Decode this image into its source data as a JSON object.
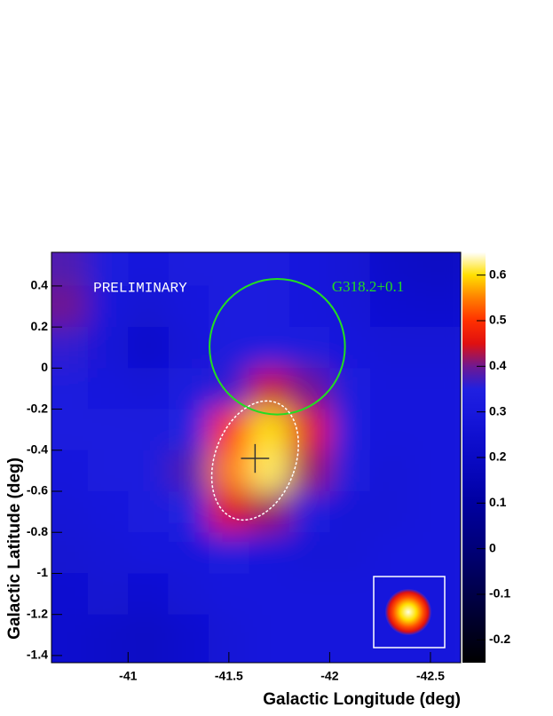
{
  "chart_data": {
    "type": "heatmap",
    "x_label": "Galactic Longitude (deg)",
    "y_label": "Galactic Latitude (deg)",
    "xlim": [
      -40.62,
      -42.65
    ],
    "ylim": [
      -1.435,
      0.564
    ],
    "xticks": [
      -41,
      -41.5,
      -42,
      -42.5
    ],
    "yticks": [
      0.4,
      0.2,
      0,
      -0.2,
      -0.4,
      -0.6,
      -0.8,
      -1,
      -1.2,
      -1.4
    ],
    "zlim": [
      -0.25,
      0.65
    ],
    "zticks": [
      -0.2,
      -0.1,
      0,
      0.1,
      0.2,
      0.3,
      0.4,
      0.5,
      0.6
    ],
    "colormap": [
      "#000000",
      "#000018",
      "#000030",
      "#000048",
      "#000060",
      "#000078",
      "#00008c",
      "#0000a0",
      "#0505b4",
      "#0a0ac4",
      "#1010d0",
      "#1818dc",
      "#2020e0",
      "#701890",
      "#e01010",
      "#ff3000",
      "#ff8000",
      "#ffe000",
      "#ffffff"
    ],
    "x": [
      -40.7,
      -40.9,
      -41.1,
      -41.3,
      -41.5,
      -41.7,
      -41.9,
      -42.1,
      -42.3,
      -42.5
    ],
    "y": [
      0.5,
      0.3,
      0.1,
      -0.1,
      -0.3,
      -0.5,
      -0.7,
      -0.9,
      -1.1,
      -1.3,
      -1.5
    ],
    "z": [
      [
        0.38,
        0.33,
        0.3,
        0.32,
        0.33,
        0.34,
        0.3,
        0.27,
        0.22,
        0.2
      ],
      [
        0.4,
        0.3,
        0.26,
        0.3,
        0.33,
        0.34,
        0.3,
        0.28,
        0.25,
        0.24
      ],
      [
        0.36,
        0.28,
        0.22,
        0.28,
        0.33,
        0.34,
        0.32,
        0.3,
        0.28,
        0.28
      ],
      [
        0.33,
        0.3,
        0.28,
        0.32,
        0.36,
        0.44,
        0.4,
        0.33,
        0.3,
        0.3
      ],
      [
        0.32,
        0.32,
        0.32,
        0.35,
        0.5,
        0.6,
        0.46,
        0.33,
        0.3,
        0.3
      ],
      [
        0.3,
        0.32,
        0.33,
        0.38,
        0.55,
        0.62,
        0.42,
        0.32,
        0.28,
        0.3
      ],
      [
        0.28,
        0.3,
        0.32,
        0.35,
        0.45,
        0.42,
        0.33,
        0.28,
        0.28,
        0.3
      ],
      [
        0.26,
        0.28,
        0.3,
        0.3,
        0.32,
        0.3,
        0.28,
        0.28,
        0.3,
        0.3
      ],
      [
        0.25,
        0.26,
        0.25,
        0.28,
        0.3,
        0.3,
        0.3,
        0.3,
        0.3,
        0.3
      ],
      [
        0.24,
        0.22,
        0.2,
        0.24,
        0.28,
        0.3,
        0.3,
        0.3,
        0.3,
        0.3
      ],
      [
        0.24,
        0.22,
        0.2,
        0.24,
        0.28,
        0.3,
        0.3,
        0.3,
        0.3,
        0.3
      ]
    ],
    "watermark": {
      "text": "PRELIMINARY",
      "x": -41.06,
      "y": 0.39,
      "color": "#ffffff"
    },
    "circle": {
      "label": "G318.2+0.1",
      "center": [
        -41.74,
        0.104
      ],
      "radius": 0.33,
      "color": "#22dd22",
      "label_x": -42.19,
      "label_y": 0.39
    },
    "ellipse": {
      "center": [
        -41.63,
        -0.45
      ],
      "rx": 0.2,
      "ry": 0.3,
      "angle": 20,
      "color": "#ffffff"
    },
    "cross": {
      "center": [
        -41.63,
        -0.44
      ],
      "size": 0.07,
      "color": "#333333"
    }
  }
}
